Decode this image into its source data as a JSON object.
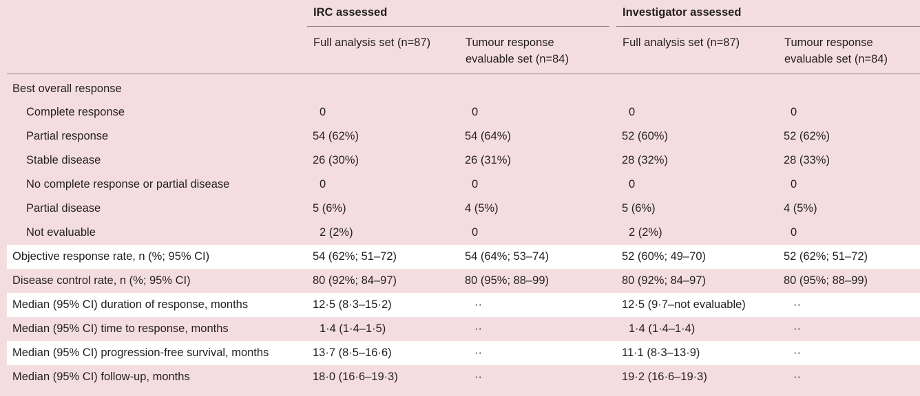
{
  "header": {
    "groups": [
      "IRC assessed",
      "Investigator assessed"
    ],
    "columns": [
      "Full analysis set (n=87)",
      "Tumour response evaluable set (n=84)",
      "Full analysis set (n=87)",
      "Tumour response evaluable set (n=84)"
    ]
  },
  "section_label": "Best overall response",
  "rows": [
    {
      "label": "Complete response",
      "values": [
        "0",
        "0",
        "0",
        "0"
      ]
    },
    {
      "label": "Partial response",
      "values": [
        "54 (62%)",
        "54 (64%)",
        "52 (60%)",
        "52 (62%)"
      ]
    },
    {
      "label": "Stable disease",
      "values": [
        "26 (30%)",
        "26 (31%)",
        "28 (32%)",
        "28 (33%)"
      ]
    },
    {
      "label": "No complete response or partial disease",
      "values": [
        "0",
        "0",
        "0",
        "0"
      ]
    },
    {
      "label": "Partial disease",
      "values": [
        "5 (6%)",
        "4 (5%)",
        "5 (6%)",
        "4 (5%)"
      ]
    },
    {
      "label": "Not evaluable",
      "values": [
        "2 (2%)",
        "0",
        "2 (2%)",
        "0"
      ]
    },
    {
      "label": "Objective response rate, n (%; 95% CI)",
      "values": [
        "54 (62%; 51–72)",
        "54 (64%; 53–74)",
        "52 (60%; 49–70)",
        "52 (62%; 51–72)"
      ]
    },
    {
      "label": "Disease control rate, n (%; 95% CI)",
      "values": [
        "80 (92%; 84–97)",
        "80 (95%; 88–99)",
        "80 (92%; 84–97)",
        "80 (95%; 88–99)"
      ]
    },
    {
      "label": "Median (95% CI) duration of response, months",
      "values": [
        "12·5 (8·3–15·2)",
        "··",
        "12·5 (9·7–not evaluable)",
        "··"
      ]
    },
    {
      "label": "Median (95% CI) time to response, months",
      "values": [
        "1·4 (1·4–1·5)",
        "··",
        "1·4 (1·4–1·4)",
        "··"
      ]
    },
    {
      "label": "Median (95% CI) progression-free survival, months",
      "values": [
        "13·7 (8·5–16·6)",
        "··",
        "11·1 (8·3–13·9)",
        "··"
      ]
    },
    {
      "label": "Median (95% CI) follow-up, months",
      "values": [
        "18·0 (16·6–19·3)",
        "··",
        "19·2 (16·6–19·3)",
        "··"
      ]
    }
  ]
}
